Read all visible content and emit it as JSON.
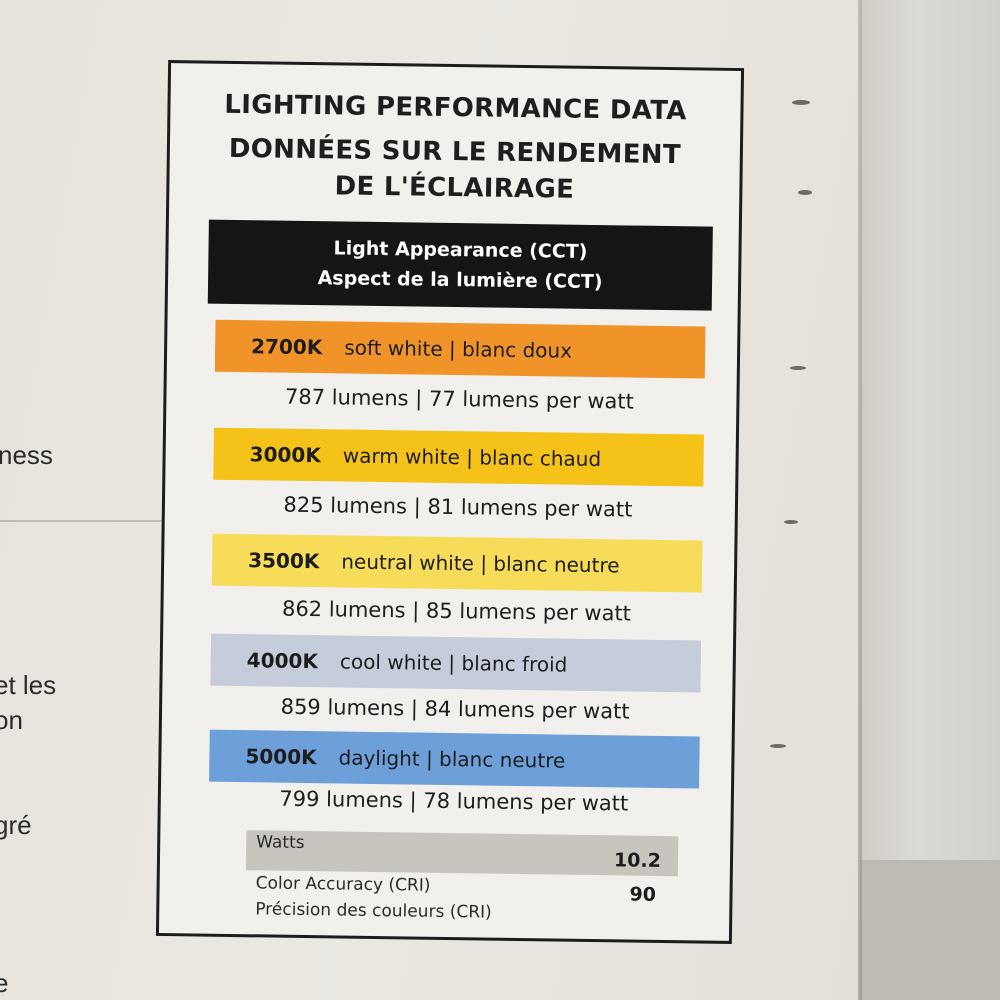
{
  "title_en": "LIGHTING PERFORMANCE DATA",
  "title_fr_line1": "DONNÉES SUR LE RENDEMENT",
  "title_fr_line2": "DE L'ÉCLAIRAGE",
  "cct_header_en": "Light Appearance (CCT)",
  "cct_header_fr": "Aspect de la lumière (CCT)",
  "rows": [
    {
      "temp": "2700K",
      "name": "soft white | blanc doux",
      "lumens": "787 lumens | 77 lumens per watt",
      "color": "#f0942a"
    },
    {
      "temp": "3000K",
      "name": "warm white | blanc chaud",
      "lumens": "825 lumens | 81 lumens per watt",
      "color": "#f4c218"
    },
    {
      "temp": "3500K",
      "name": "neutral white | blanc neutre",
      "lumens": "862 lumens | 85 lumens per watt",
      "color": "#f7dc5a"
    },
    {
      "temp": "4000K",
      "name": "cool white | blanc froid",
      "lumens": "859 lumens | 84 lumens per watt",
      "color": "#c6cdda"
    },
    {
      "temp": "5000K",
      "name": "daylight | blanc neutre",
      "lumens": "799 lumens | 78 lumens per watt",
      "color": "#6d9fd8"
    }
  ],
  "watts_label": "Watts",
  "watts_value": "10.2",
  "cri_label_en": "Color Accuracy (CRI)",
  "cri_label_fr": "Précision des couleurs (CRI)",
  "cri_value": "90",
  "left_fragments": [
    "ness",
    "et les",
    "on",
    "gré",
    "e"
  ]
}
